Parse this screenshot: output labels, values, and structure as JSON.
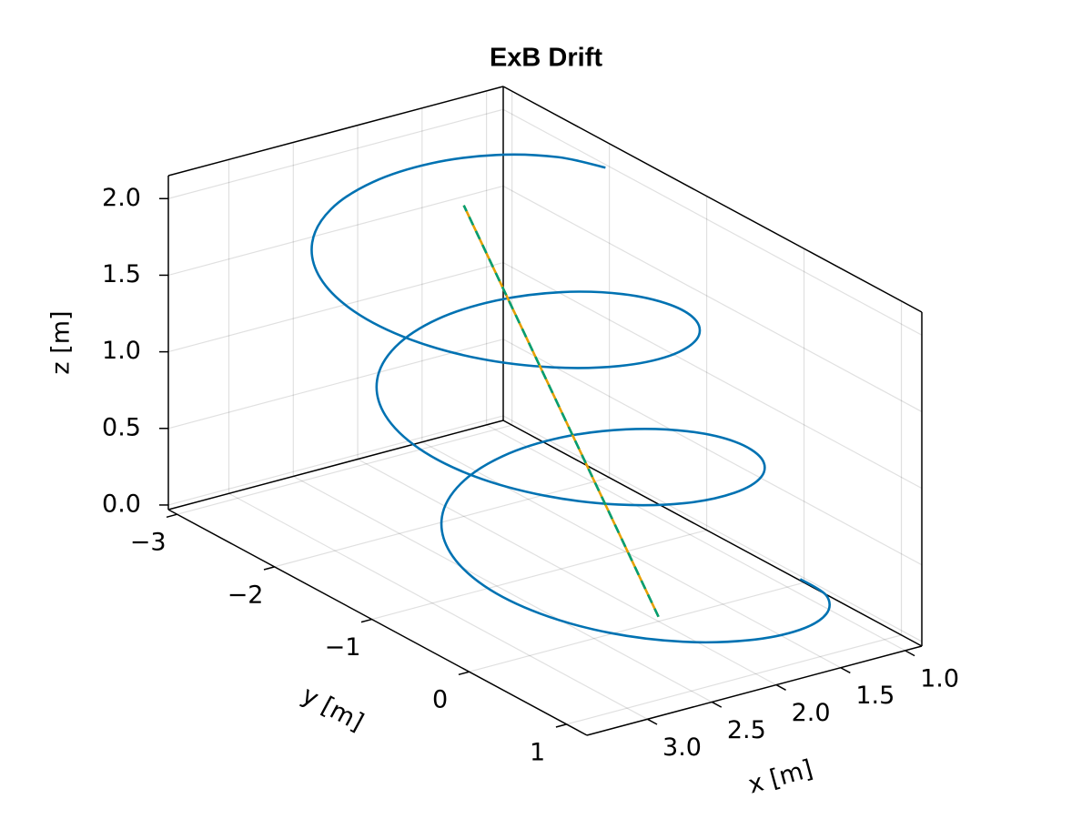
{
  "chart_data": {
    "type": "line3d",
    "title": "ExB Drift",
    "xlabel": "x [m]",
    "ylabel": "y [m]",
    "zlabel": "z [m]",
    "xlim": [
      0.87,
      3.47
    ],
    "ylim": [
      -3.09,
      1.21
    ],
    "zlim": [
      -0.03,
      2.15
    ],
    "xticks": [
      {
        "value": 1,
        "label": "1.0"
      },
      1.5,
      {
        "value": 2,
        "label": "2.0"
      },
      2.5,
      {
        "value": 3,
        "label": "3.0"
      }
    ],
    "yticks": [
      {
        "value": -3,
        "label": "−3"
      },
      {
        "value": -2,
        "label": "−2"
      },
      {
        "value": -1,
        "label": "−1"
      },
      0,
      1
    ],
    "zticks": [
      {
        "value": 0,
        "label": "0.0"
      },
      0.5,
      {
        "value": 1,
        "label": "1.0"
      },
      1.5,
      {
        "value": 2,
        "label": "2.0"
      }
    ],
    "grid": true,
    "series": [
      {
        "color": "#0072b2",
        "linestyle": "solid",
        "x": [
          0.9,
          0.984,
          1.222,
          1.579,
          2.0,
          2.421,
          2.778,
          3.016,
          3.1,
          3.016,
          2.778,
          2.421,
          2.0,
          1.579,
          1.222,
          0.984,
          0.9,
          0.984,
          1.222,
          1.579,
          2.0,
          2.421,
          2.778,
          3.016,
          3.1,
          3.016,
          2.778,
          2.421,
          2.0,
          1.579,
          1.222,
          0.984,
          0.9,
          0.984,
          1.222,
          1.579,
          2.0,
          2.421,
          2.778,
          3.016,
          3.1,
          3.016,
          2.778,
          2.421,
          2.0,
          1.579,
          1.222,
          0.984,
          0.9
        ],
        "y": [
          0,
          0.379,
          0.695,
          0.891,
          0.933,
          0.808,
          0.528,
          0.129,
          -0.333,
          -0.796,
          -1.195,
          -1.474,
          -1.6,
          -1.558,
          -1.361,
          -1.046,
          -0.667,
          -0.287,
          0.028,
          0.224,
          0.267,
          0.141,
          -0.139,
          -0.537,
          -1.0,
          -1.463,
          -1.861,
          -2.141,
          -2.267,
          -2.224,
          -2.028,
          -1.713,
          -1.333,
          -0.954,
          -0.639,
          -0.442,
          -0.4,
          -0.526,
          -0.805,
          -1.204,
          -1.667,
          -2.129,
          -2.528,
          -2.808,
          -2.933,
          -2.891,
          -2.695,
          -2.379,
          -2.0
        ],
        "z": [
          0,
          0.042,
          0.083,
          0.125,
          0.167,
          0.208,
          0.25,
          0.292,
          0.333,
          0.375,
          0.417,
          0.458,
          0.5,
          0.542,
          0.583,
          0.625,
          0.667,
          0.708,
          0.75,
          0.792,
          0.833,
          0.875,
          0.917,
          0.958,
          1.0,
          1.042,
          1.083,
          1.125,
          1.167,
          1.208,
          1.25,
          1.292,
          1.333,
          1.375,
          1.417,
          1.458,
          1.5,
          1.542,
          1.583,
          1.625,
          1.667,
          1.708,
          1.75,
          1.792,
          1.833,
          1.875,
          1.917,
          1.958,
          2.0
        ]
      },
      {
        "color": "#e69f00",
        "linestyle": "solid",
        "x": [
          2,
          2
        ],
        "y": [
          0,
          -2
        ],
        "z": [
          0,
          2
        ]
      },
      {
        "color": "#009e73",
        "linestyle": "dash",
        "x": [
          2,
          2
        ],
        "y": [
          0,
          -2
        ],
        "z": [
          0,
          2
        ]
      }
    ]
  }
}
